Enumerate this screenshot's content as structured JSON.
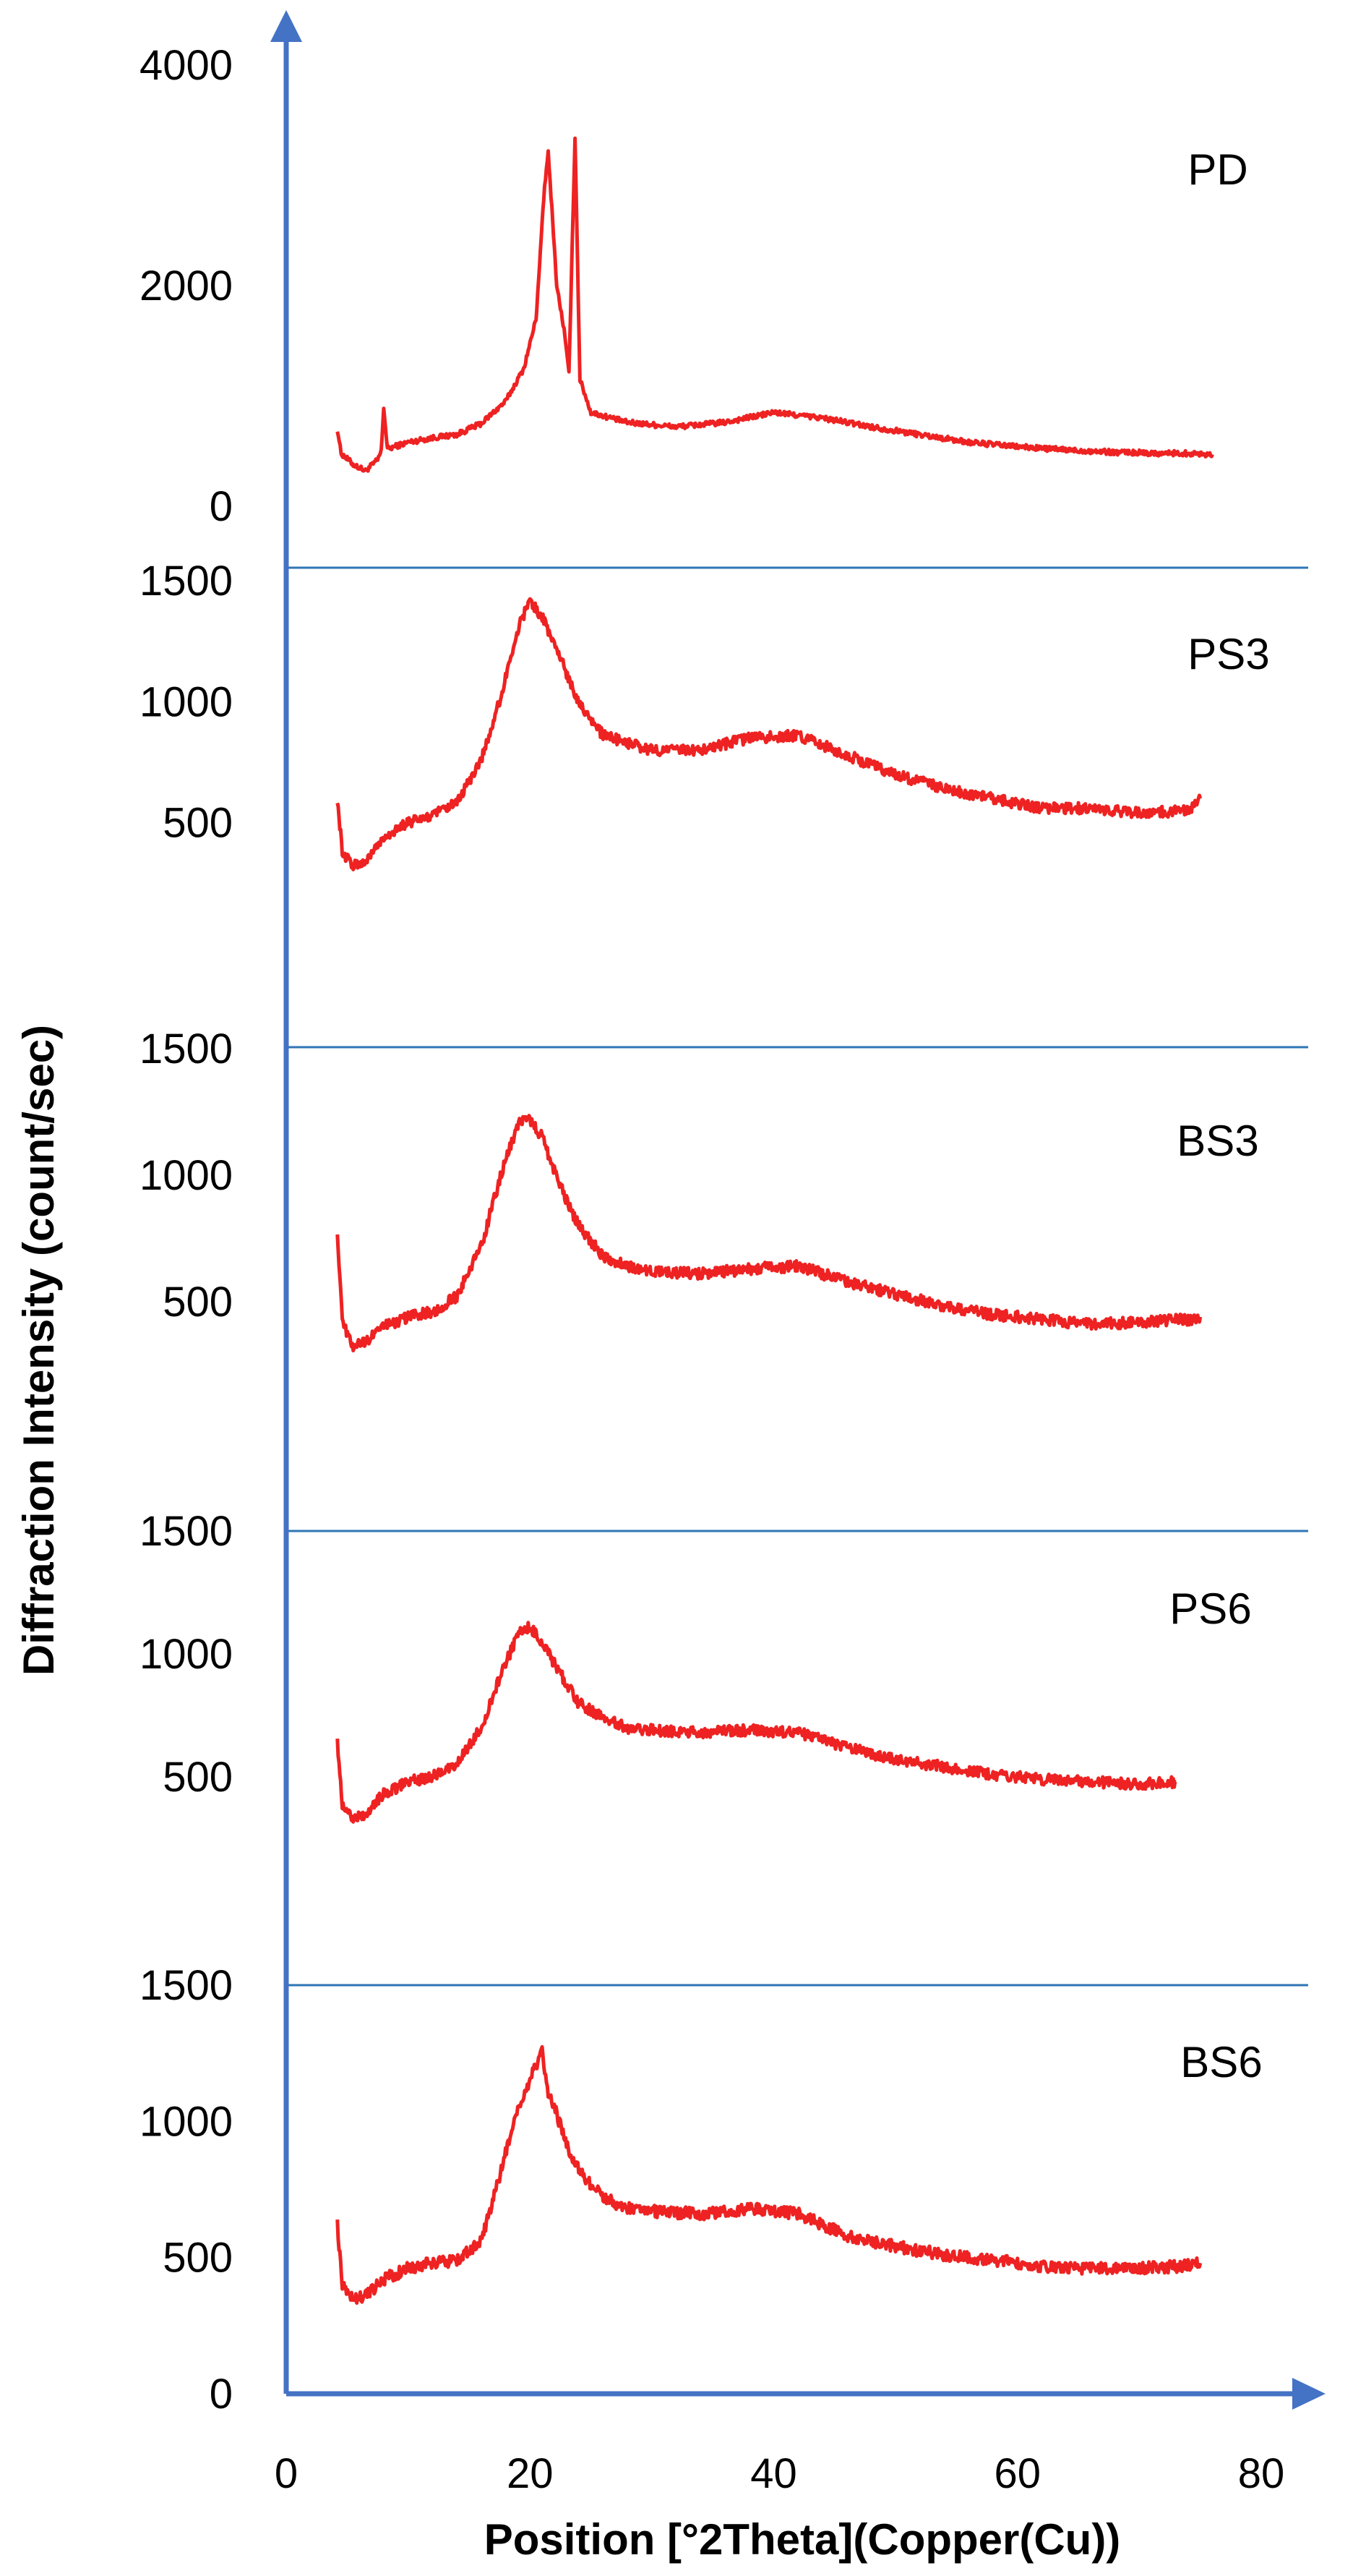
{
  "chart_data": {
    "type": "line",
    "xlabel": "Position [°2Theta](Copper(Cu))",
    "ylabel": "Diffraction Intensity (count/sec)",
    "xlim": [
      0,
      80
    ],
    "x_ticks": [
      "0",
      "20",
      "40",
      "60",
      "80"
    ],
    "colors": {
      "series": "#ee2222",
      "axis": "#4472c4",
      "divider": "#2e75b6"
    },
    "panels": [
      {
        "name": "PD",
        "ylim": [
          0,
          4000
        ],
        "y_ticks": [
          "0",
          "2000",
          "4000"
        ],
        "points": [
          [
            4.2,
            700
          ],
          [
            4.5,
            480
          ],
          [
            5.5,
            380
          ],
          [
            6.5,
            320
          ],
          [
            7.5,
            420
          ],
          [
            7.8,
            500
          ],
          [
            8.0,
            900
          ],
          [
            8.3,
            520
          ],
          [
            10,
            580
          ],
          [
            12,
            620
          ],
          [
            14,
            650
          ],
          [
            16,
            750
          ],
          [
            18,
            950
          ],
          [
            19.5,
            1250
          ],
          [
            20.5,
            1700
          ],
          [
            21.2,
            2900
          ],
          [
            21.5,
            3200
          ],
          [
            21.8,
            2700
          ],
          [
            22.2,
            2000
          ],
          [
            22.8,
            1600
          ],
          [
            23.2,
            1200
          ],
          [
            23.7,
            3350
          ],
          [
            24.1,
            1150
          ],
          [
            25,
            850
          ],
          [
            28,
            760
          ],
          [
            32,
            720
          ],
          [
            36,
            760
          ],
          [
            40,
            850
          ],
          [
            44,
            800
          ],
          [
            48,
            720
          ],
          [
            52,
            650
          ],
          [
            56,
            580
          ],
          [
            60,
            540
          ],
          [
            64,
            510
          ],
          [
            68,
            490
          ],
          [
            72,
            480
          ],
          [
            74,
            480
          ],
          [
            76,
            470
          ]
        ]
      },
      {
        "name": "PS3",
        "ylim": [
          0,
          1500
        ],
        "y_ticks": [
          "500",
          "1000",
          "1500"
        ],
        "points": [
          [
            4.2,
            600
          ],
          [
            4.6,
            380
          ],
          [
            5.5,
            320
          ],
          [
            6.5,
            340
          ],
          [
            8,
            440
          ],
          [
            10,
            500
          ],
          [
            12,
            530
          ],
          [
            14,
            580
          ],
          [
            16,
            760
          ],
          [
            17.5,
            1000
          ],
          [
            19,
            1300
          ],
          [
            20,
            1420
          ],
          [
            21,
            1350
          ],
          [
            22,
            1240
          ],
          [
            23,
            1120
          ],
          [
            24,
            1000
          ],
          [
            26,
            860
          ],
          [
            28,
            830
          ],
          [
            30,
            800
          ],
          [
            34,
            800
          ],
          [
            38,
            850
          ],
          [
            42,
            860
          ],
          [
            46,
            780
          ],
          [
            50,
            700
          ],
          [
            54,
            640
          ],
          [
            58,
            600
          ],
          [
            62,
            560
          ],
          [
            66,
            560
          ],
          [
            70,
            540
          ],
          [
            74,
            550
          ],
          [
            75,
            600
          ]
        ]
      },
      {
        "name": "BS3",
        "ylim": [
          0,
          1500
        ],
        "y_ticks": [
          "500",
          "1000",
          "1500"
        ],
        "points": [
          [
            4.2,
            780
          ],
          [
            4.6,
            420
          ],
          [
            5.5,
            320
          ],
          [
            6.5,
            340
          ],
          [
            8,
            400
          ],
          [
            10,
            440
          ],
          [
            12,
            460
          ],
          [
            14,
            520
          ],
          [
            16,
            720
          ],
          [
            17.5,
            980
          ],
          [
            19,
            1200
          ],
          [
            20,
            1220
          ],
          [
            21,
            1150
          ],
          [
            22,
            1020
          ],
          [
            23,
            900
          ],
          [
            24,
            800
          ],
          [
            26,
            680
          ],
          [
            28,
            640
          ],
          [
            30,
            620
          ],
          [
            34,
            610
          ],
          [
            38,
            630
          ],
          [
            42,
            640
          ],
          [
            46,
            580
          ],
          [
            50,
            530
          ],
          [
            54,
            480
          ],
          [
            58,
            450
          ],
          [
            62,
            430
          ],
          [
            66,
            410
          ],
          [
            70,
            420
          ],
          [
            74,
            430
          ],
          [
            75,
            440
          ]
        ]
      },
      {
        "name": "PS6",
        "ylim": [
          0,
          1500
        ],
        "y_ticks": [
          "500",
          "1000",
          "1500"
        ],
        "points": [
          [
            4.2,
            640
          ],
          [
            4.6,
            390
          ],
          [
            5.5,
            330
          ],
          [
            6.5,
            350
          ],
          [
            8,
            430
          ],
          [
            10,
            480
          ],
          [
            12,
            500
          ],
          [
            14,
            550
          ],
          [
            16,
            700
          ],
          [
            17.5,
            900
          ],
          [
            19,
            1080
          ],
          [
            20,
            1110
          ],
          [
            21,
            1050
          ],
          [
            22,
            960
          ],
          [
            23,
            880
          ],
          [
            24,
            800
          ],
          [
            26,
            740
          ],
          [
            28,
            700
          ],
          [
            30,
            690
          ],
          [
            34,
            680
          ],
          [
            38,
            690
          ],
          [
            42,
            680
          ],
          [
            46,
            620
          ],
          [
            50,
            570
          ],
          [
            54,
            540
          ],
          [
            58,
            510
          ],
          [
            62,
            490
          ],
          [
            66,
            480
          ],
          [
            70,
            470
          ],
          [
            73,
            480
          ]
        ]
      },
      {
        "name": "BS6",
        "ylim": [
          0,
          1500
        ],
        "y_ticks": [
          "0",
          "500",
          "1000",
          "1500"
        ],
        "points": [
          [
            4.2,
            620
          ],
          [
            4.6,
            400
          ],
          [
            5.5,
            340
          ],
          [
            6.5,
            360
          ],
          [
            8,
            420
          ],
          [
            10,
            460
          ],
          [
            12,
            480
          ],
          [
            14,
            490
          ],
          [
            16,
            560
          ],
          [
            17.5,
            800
          ],
          [
            19,
            1050
          ],
          [
            20,
            1150
          ],
          [
            21,
            1260
          ],
          [
            21.5,
            1100
          ],
          [
            22,
            1050
          ],
          [
            23,
            920
          ],
          [
            24,
            820
          ],
          [
            26,
            720
          ],
          [
            28,
            680
          ],
          [
            30,
            670
          ],
          [
            34,
            660
          ],
          [
            38,
            680
          ],
          [
            42,
            660
          ],
          [
            46,
            580
          ],
          [
            50,
            540
          ],
          [
            54,
            510
          ],
          [
            58,
            490
          ],
          [
            62,
            470
          ],
          [
            66,
            460
          ],
          [
            70,
            460
          ],
          [
            74,
            470
          ],
          [
            75,
            480
          ]
        ]
      }
    ]
  }
}
